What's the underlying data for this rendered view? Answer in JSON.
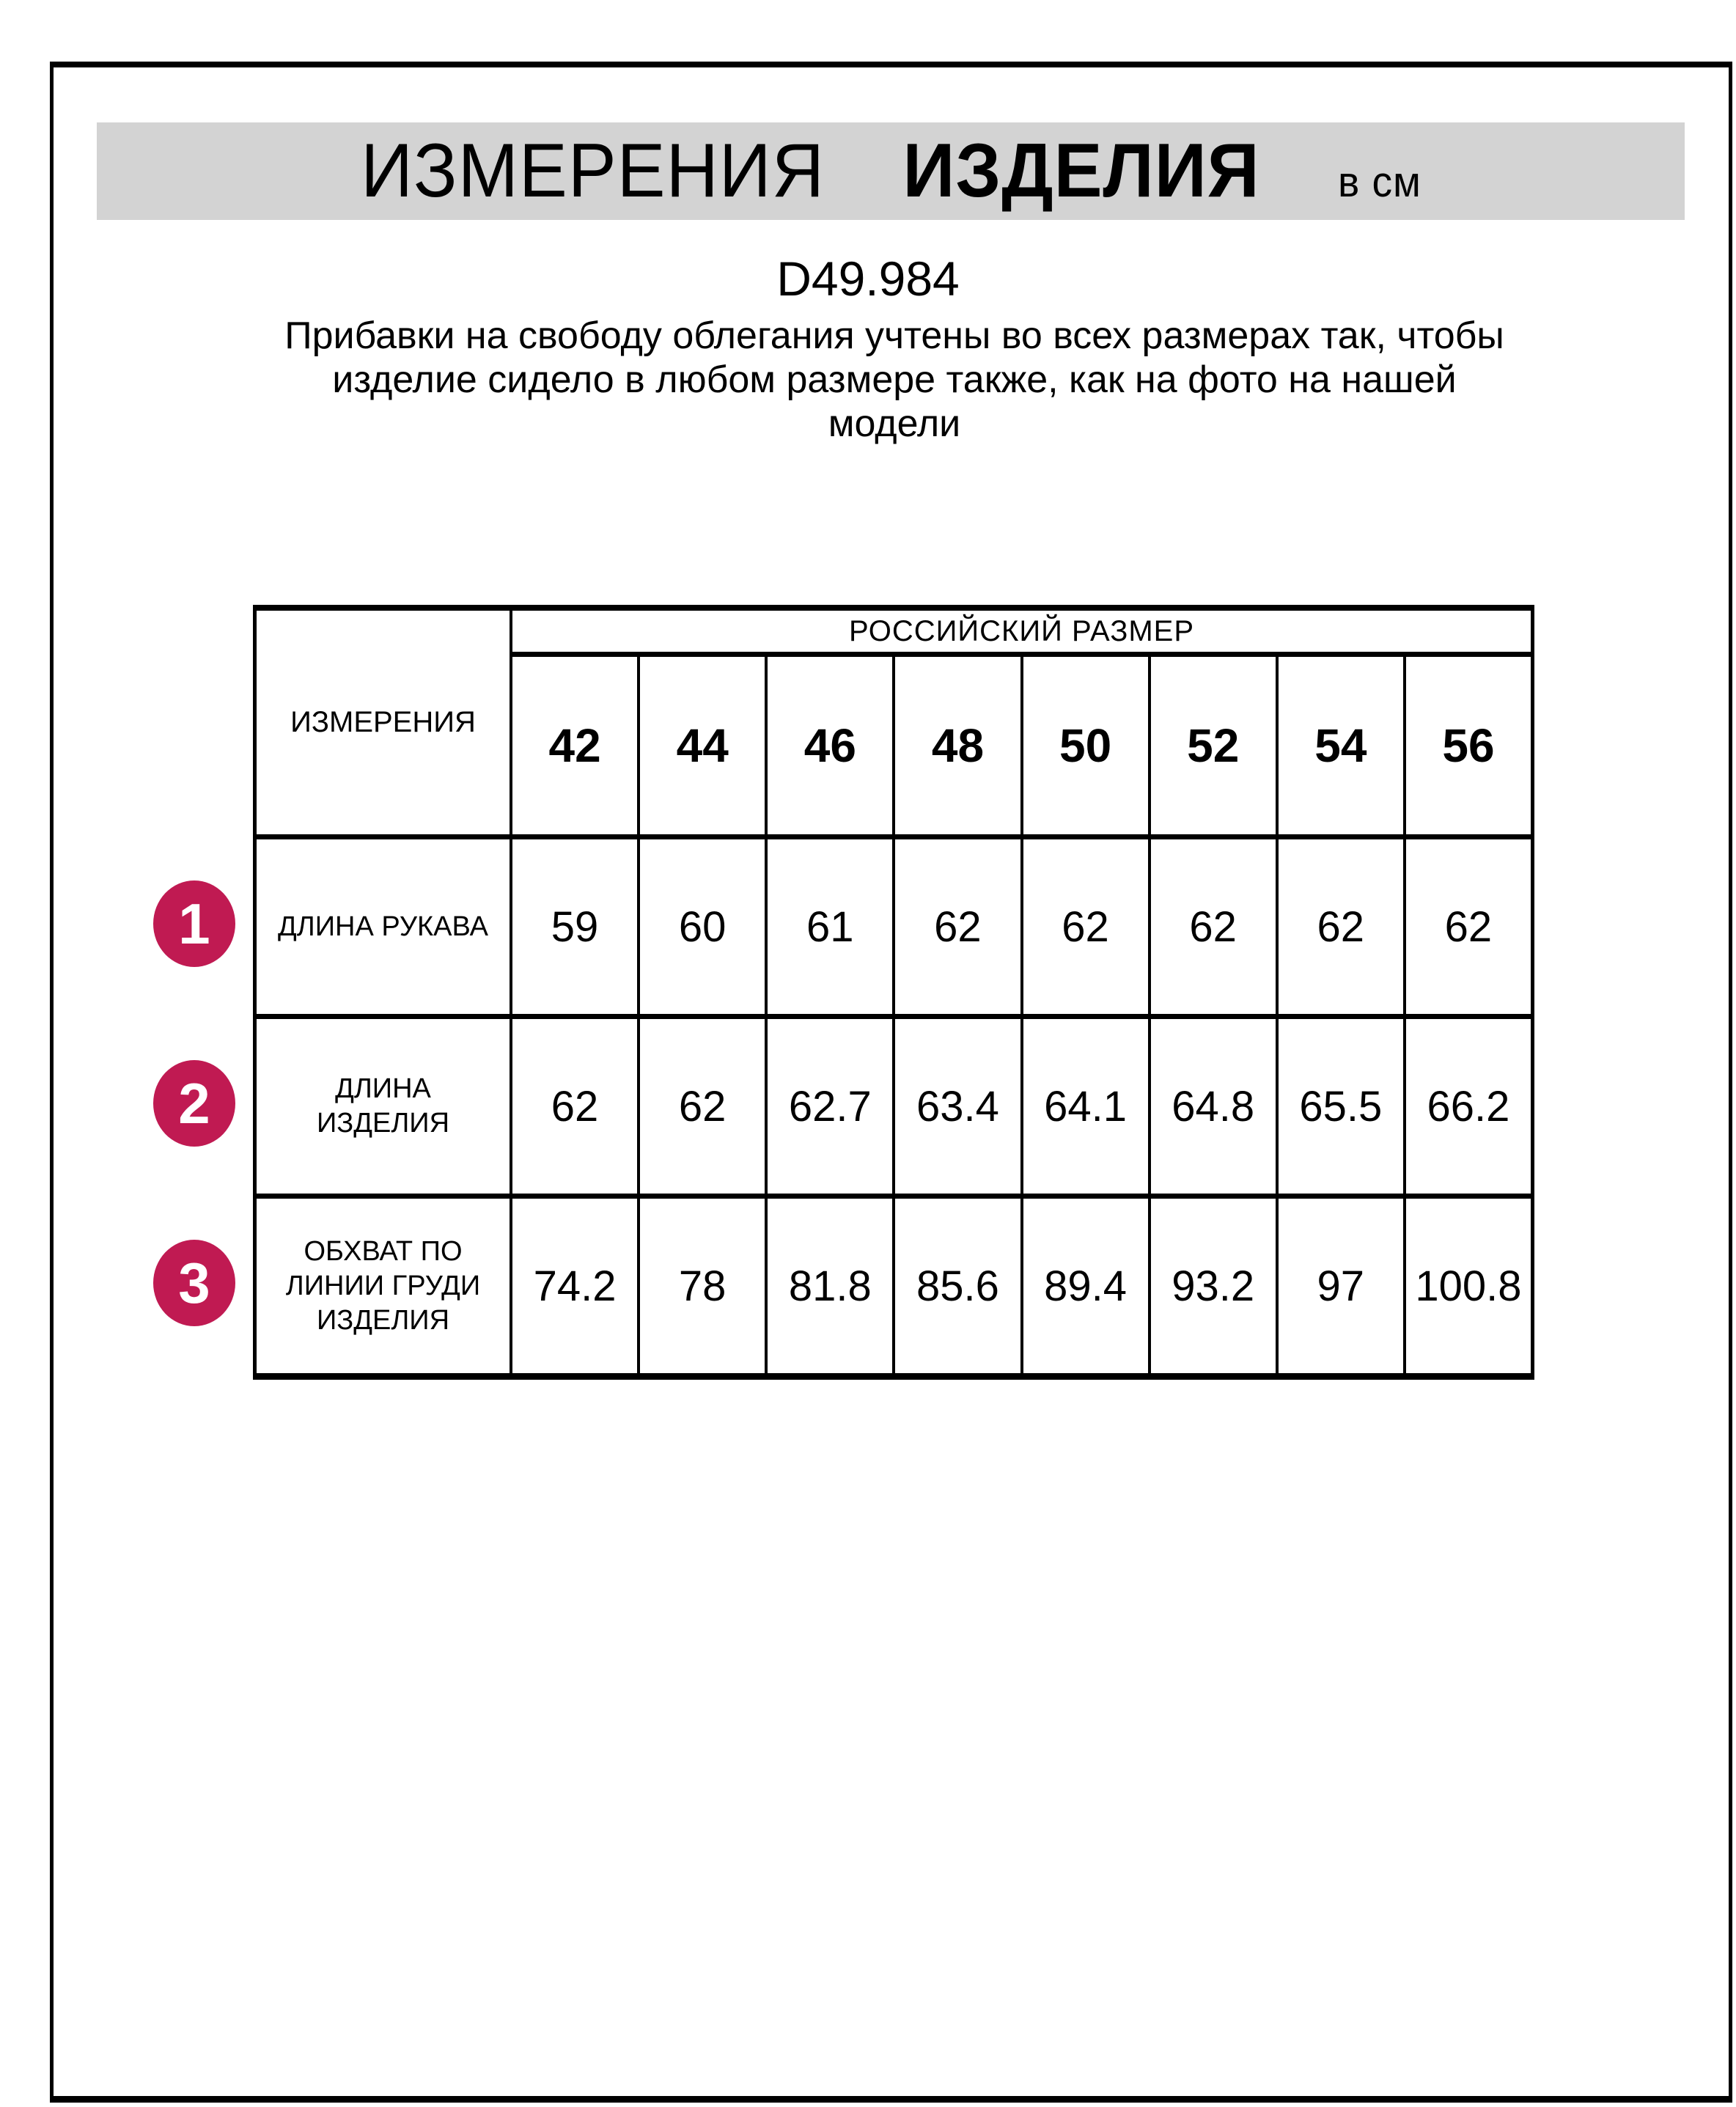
{
  "page": {
    "title": {
      "part1": "ИЗМЕРЕНИЯ",
      "part2": "ИЗДЕЛИЯ",
      "unit": "в см"
    },
    "product_code": "D49.984",
    "subtitle_lines": [
      "Прибавки на свободу облегания учтены во всех размерах так, чтобы",
      "изделие сидело в любом размере также, как на фото на нашей",
      "модели"
    ]
  },
  "table": {
    "corner_header": "ИЗМЕРЕНИЯ",
    "group_header": "РОССИЙСКИЙ РАЗМЕР",
    "sizes": [
      "42",
      "44",
      "46",
      "48",
      "50",
      "52",
      "54",
      "56"
    ],
    "rows": [
      {
        "num": "1",
        "label_lines": [
          "ДЛИНА РУКАВА"
        ],
        "values": [
          "59",
          "60",
          "61",
          "62",
          "62",
          "62",
          "62",
          "62"
        ]
      },
      {
        "num": "2",
        "label_lines": [
          "ДЛИНА",
          "ИЗДЕЛИЯ"
        ],
        "values": [
          "62",
          "62",
          "62.7",
          "63.4",
          "64.1",
          "64.8",
          "65.5",
          "66.2"
        ]
      },
      {
        "num": "3",
        "label_lines": [
          "ОБХВАТ ПО",
          "ЛИНИИ ГРУДИ",
          "ИЗДЕЛИЯ"
        ],
        "values": [
          "74.2",
          "78",
          "81.8",
          "85.6",
          "89.4",
          "93.2",
          "97",
          "100.8"
        ]
      }
    ]
  },
  "colors": {
    "accent_circle": "#c01a52",
    "title_band": "#d3d3d3",
    "border": "#000000"
  }
}
